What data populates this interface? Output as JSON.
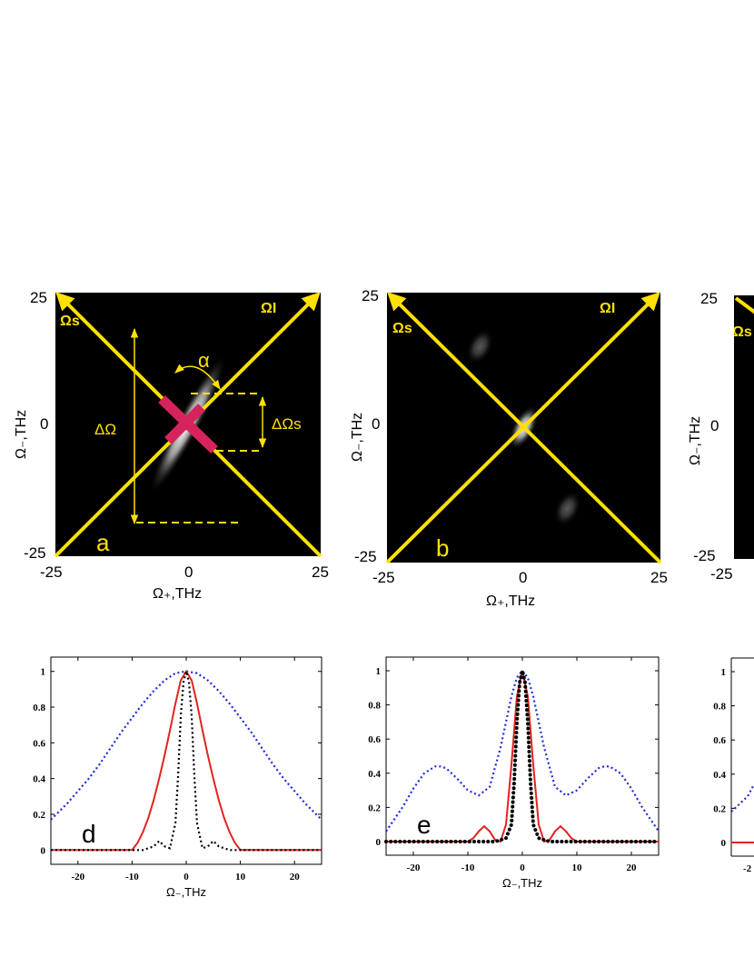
{
  "colors": {
    "yellow": "#ffe100",
    "magenta": "#d6245a",
    "red": "#e3231f",
    "blue": "#1d2bd6",
    "black": "#000000"
  },
  "chart_data": [
    {
      "id": "a",
      "type": "heatmap",
      "panel_label": "a",
      "xlabel": "Ω₊,THz",
      "ylabel": "Ω₋,THz",
      "xlim": [
        -25,
        25
      ],
      "ylim": [
        -25,
        25
      ],
      "x_ticks": [
        "-25",
        "0",
        "25"
      ],
      "y_ticks": [
        "25",
        "0",
        "-25"
      ],
      "axis_labels": {
        "signal": "Ωs",
        "idler": "ΩI"
      },
      "annotations": {
        "angle": "α",
        "delta_omega": "ΔΩ",
        "delta_omega_s": "ΔΩs"
      },
      "blobs": [
        {
          "x": 0,
          "y": 0,
          "long_sigma": 15,
          "short_sigma": 1.6,
          "angle_deg": -62,
          "peak": 1.0
        }
      ],
      "marker_cross_at": [
        0,
        0
      ]
    },
    {
      "id": "b",
      "type": "heatmap",
      "panel_label": "b",
      "xlabel": "Ω₊,THz",
      "ylabel": "Ω₋,THz",
      "xlim": [
        -25,
        25
      ],
      "ylim": [
        -25,
        25
      ],
      "x_ticks": [
        "-25",
        "0",
        "25"
      ],
      "y_ticks": [
        "25",
        "0",
        "-25"
      ],
      "axis_labels": {
        "signal": "Ωs",
        "idler": "ΩI"
      },
      "blobs": [
        {
          "x": 0,
          "y": 0,
          "long_sigma": 4.5,
          "short_sigma": 1.5,
          "angle_deg": -62,
          "peak": 1.0
        },
        {
          "x": -8,
          "y": 15,
          "long_sigma": 3.5,
          "short_sigma": 1.6,
          "angle_deg": -62,
          "peak": 0.35
        },
        {
          "x": 8,
          "y": -15,
          "long_sigma": 3.5,
          "short_sigma": 1.6,
          "angle_deg": -62,
          "peak": 0.35
        }
      ]
    },
    {
      "id": "c",
      "type": "heatmap",
      "panel_label": "",
      "ylabel": "Ω₋,THz",
      "xlim": [
        -25,
        25
      ],
      "ylim": [
        -25,
        25
      ],
      "x_ticks": [
        "-25"
      ],
      "y_ticks": [
        "25",
        "0",
        "-25"
      ],
      "axis_labels": {
        "signal": "Ωs"
      },
      "blobs": []
    },
    {
      "id": "d",
      "type": "line",
      "panel_label": "d",
      "xlabel": "Ω₋,THz",
      "xlim": [
        -25,
        25
      ],
      "ylim": [
        -0.08,
        1.08
      ],
      "x_ticks": [
        -20,
        -10,
        0,
        10,
        20
      ],
      "y_ticks": [
        0,
        0.2,
        0.4,
        0.6,
        0.8,
        1
      ],
      "y_tick_labels": [
        "0",
        "0.2",
        "0.4",
        "0.6",
        "0.8",
        "1"
      ],
      "series": [
        {
          "name": "blue-dotted",
          "style": "dotted",
          "color": "#1d2bd6",
          "x": [
            -25,
            -22,
            -20,
            -18,
            -16,
            -14,
            -12,
            -10,
            -8,
            -6,
            -4,
            -2,
            0,
            2,
            4,
            6,
            8,
            10,
            12,
            14,
            16,
            18,
            20,
            22,
            25
          ],
          "y": [
            0.17,
            0.26,
            0.33,
            0.4,
            0.48,
            0.57,
            0.66,
            0.74,
            0.82,
            0.89,
            0.95,
            0.99,
            1.0,
            0.99,
            0.95,
            0.89,
            0.82,
            0.74,
            0.66,
            0.57,
            0.48,
            0.4,
            0.33,
            0.26,
            0.17
          ]
        },
        {
          "name": "red-solid",
          "style": "solid",
          "color": "#e3231f",
          "x": [
            -25,
            -12,
            -10,
            -9,
            -8,
            -7,
            -6,
            -5,
            -4,
            -3,
            -2,
            -1,
            0,
            1,
            2,
            3,
            4,
            5,
            6,
            7,
            8,
            9,
            10,
            12,
            25
          ],
          "y": [
            0,
            0,
            0,
            0.04,
            0.1,
            0.18,
            0.28,
            0.4,
            0.53,
            0.67,
            0.82,
            0.95,
            1.0,
            0.95,
            0.82,
            0.67,
            0.53,
            0.4,
            0.28,
            0.18,
            0.1,
            0.04,
            0,
            0,
            0
          ]
        },
        {
          "name": "black-dotted",
          "style": "dotted",
          "color": "#000000",
          "x": [
            -25,
            -8,
            -6,
            -5,
            -4,
            -3,
            -2,
            -1.5,
            -1,
            -0.5,
            0,
            0.5,
            1,
            1.5,
            2,
            3,
            4,
            5,
            6,
            8,
            25
          ],
          "y": [
            0,
            0,
            0.02,
            0.05,
            0.02,
            0.01,
            0.15,
            0.42,
            0.75,
            0.94,
            1.0,
            0.94,
            0.75,
            0.42,
            0.15,
            0.01,
            0.02,
            0.05,
            0.02,
            0,
            0
          ]
        }
      ]
    },
    {
      "id": "e",
      "type": "line",
      "panel_label": "e",
      "xlabel": "Ω₋,THz",
      "xlim": [
        -25,
        25
      ],
      "ylim": [
        -0.08,
        1.08
      ],
      "x_ticks": [
        -20,
        -10,
        0,
        10,
        20
      ],
      "y_ticks": [
        0,
        0.2,
        0.4,
        0.6,
        0.8,
        1
      ],
      "y_tick_labels": [
        "0",
        "0.2",
        "0.4",
        "0.6",
        "0.8",
        "1"
      ],
      "series": [
        {
          "name": "blue-dotted",
          "style": "dotted",
          "color": "#1d2bd6",
          "x": [
            -25,
            -22,
            -20,
            -18,
            -16,
            -15,
            -14,
            -12,
            -10,
            -8,
            -6,
            -4,
            -2,
            -1,
            0,
            1,
            2,
            4,
            6,
            8,
            10,
            12,
            14,
            15,
            16,
            18,
            20,
            22,
            25
          ],
          "y": [
            0.06,
            0.2,
            0.31,
            0.4,
            0.44,
            0.44,
            0.43,
            0.37,
            0.3,
            0.27,
            0.32,
            0.55,
            0.85,
            0.96,
            1.0,
            0.96,
            0.85,
            0.55,
            0.32,
            0.27,
            0.3,
            0.37,
            0.43,
            0.44,
            0.44,
            0.4,
            0.31,
            0.2,
            0.06
          ]
        },
        {
          "name": "red-solid",
          "style": "solid",
          "color": "#e3231f",
          "x": [
            -25,
            -10,
            -9,
            -8,
            -7,
            -6,
            -5,
            -4,
            -3,
            -2,
            -1,
            0,
            1,
            2,
            3,
            4,
            5,
            6,
            7,
            8,
            9,
            10,
            25
          ],
          "y": [
            0,
            0,
            0.02,
            0.06,
            0.09,
            0.06,
            0.01,
            0.0,
            0.1,
            0.45,
            0.85,
            1.0,
            0.85,
            0.45,
            0.1,
            0.0,
            0.01,
            0.06,
            0.09,
            0.06,
            0.02,
            0,
            0
          ]
        },
        {
          "name": "black-dotted",
          "style": "dotted-bold",
          "color": "#000000",
          "x": [
            -25,
            -5,
            -4,
            -3,
            -2,
            -1.5,
            -1,
            -0.5,
            0,
            0.5,
            1,
            1.5,
            2,
            3,
            4,
            5,
            25
          ],
          "y": [
            0,
            0,
            0.01,
            0.02,
            0.1,
            0.35,
            0.7,
            0.93,
            1.0,
            0.93,
            0.7,
            0.35,
            0.1,
            0.02,
            0.01,
            0,
            0
          ]
        }
      ]
    },
    {
      "id": "f",
      "type": "line",
      "panel_label": "",
      "xlim": [
        -25,
        25
      ],
      "ylim": [
        -0.08,
        1.08
      ],
      "y_ticks": [
        0,
        0.2,
        0.4,
        0.6,
        0.8,
        1
      ],
      "y_tick_labels": [
        "0",
        "0.2",
        "0.4",
        "0.6",
        "0.8",
        "1"
      ],
      "x_tick_partial": "-2",
      "series": [
        {
          "name": "blue-dotted",
          "style": "dotted",
          "color": "#1d2bd6",
          "x": [
            -25,
            -22,
            -20
          ],
          "y": [
            0.18,
            0.27,
            0.34
          ]
        },
        {
          "name": "red-solid",
          "style": "solid",
          "color": "#e3231f",
          "x": [
            -25,
            -20
          ],
          "y": [
            0,
            0
          ]
        }
      ]
    }
  ]
}
